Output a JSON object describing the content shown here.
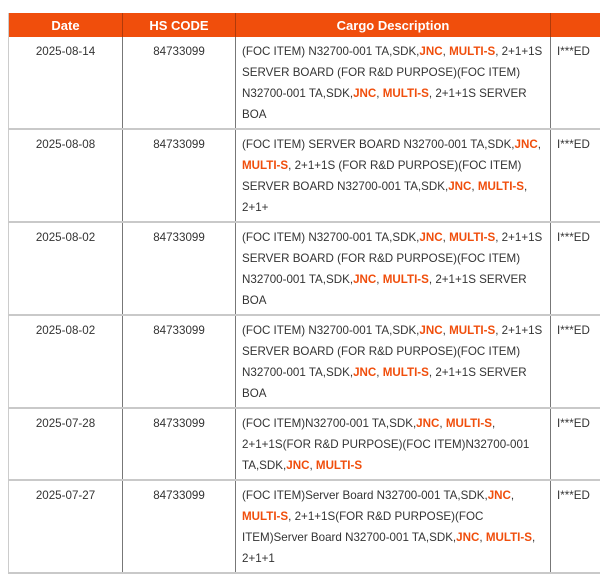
{
  "accent_color": "#f04e0c",
  "headers": [
    "Date",
    "HS CODE",
    "Cargo Description",
    ""
  ],
  "rows": [
    {
      "date": "2025-08-14",
      "hs": "84733099",
      "importer": "I***ED",
      "desc": [
        {
          "t": "(FOC ITEM) N32700-001 TA,SDK,"
        },
        {
          "t": "JNC",
          "hl": true
        },
        {
          "t": ", "
        },
        {
          "t": "MULTI-S",
          "hl": true
        },
        {
          "t": ", 2+1+1S SERVER BOARD (FOR R&D PURPOSE)(FOC ITEM) N32700-001 TA,SDK,"
        },
        {
          "t": "JNC",
          "hl": true
        },
        {
          "t": ", "
        },
        {
          "t": "MULTI-S",
          "hl": true
        },
        {
          "t": ", 2+1+1S SERVER BOA"
        }
      ]
    },
    {
      "date": "2025-08-08",
      "hs": "84733099",
      "importer": "I***ED",
      "desc": [
        {
          "t": "(FOC ITEM) SERVER BOARD N32700-001 TA,SDK,"
        },
        {
          "t": "JNC",
          "hl": true
        },
        {
          "t": ", "
        },
        {
          "t": "MULTI-S",
          "hl": true
        },
        {
          "t": ", 2+1+1S (FOR R&D PURPOSE)(FOC ITEM) SERVER BOARD N32700-001 TA,SDK,"
        },
        {
          "t": "JNC",
          "hl": true
        },
        {
          "t": ", "
        },
        {
          "t": "MULTI-S",
          "hl": true
        },
        {
          "t": ", 2+1+"
        }
      ]
    },
    {
      "date": "2025-08-02",
      "hs": "84733099",
      "importer": "I***ED",
      "desc": [
        {
          "t": "(FOC ITEM) N32700-001 TA,SDK,"
        },
        {
          "t": "JNC",
          "hl": true
        },
        {
          "t": ", "
        },
        {
          "t": "MULTI-S",
          "hl": true
        },
        {
          "t": ", 2+1+1S SERVER BOARD (FOR R&D PURPOSE)(FOC ITEM) N32700-001 TA,SDK,"
        },
        {
          "t": "JNC",
          "hl": true
        },
        {
          "t": ", "
        },
        {
          "t": "MULTI-S",
          "hl": true
        },
        {
          "t": ", 2+1+1S SERVER BOA"
        }
      ]
    },
    {
      "date": "2025-08-02",
      "hs": "84733099",
      "importer": "I***ED",
      "desc": [
        {
          "t": "(FOC ITEM) N32700-001 TA,SDK,"
        },
        {
          "t": "JNC",
          "hl": true
        },
        {
          "t": ", "
        },
        {
          "t": "MULTI-S",
          "hl": true
        },
        {
          "t": ", 2+1+1S SERVER BOARD (FOR R&D PURPOSE)(FOC ITEM) N32700-001 TA,SDK,"
        },
        {
          "t": "JNC",
          "hl": true
        },
        {
          "t": ", "
        },
        {
          "t": "MULTI-S",
          "hl": true
        },
        {
          "t": ", 2+1+1S SERVER BOA"
        }
      ]
    },
    {
      "date": "2025-07-28",
      "hs": "84733099",
      "importer": "I***ED",
      "desc": [
        {
          "t": "(FOC ITEM)N32700-001 TA,SDK,"
        },
        {
          "t": "JNC",
          "hl": true
        },
        {
          "t": ", "
        },
        {
          "t": "MULTI-S",
          "hl": true
        },
        {
          "t": ", 2+1+1S(FOR R&D PURPOSE)(FOC ITEM)N32700-001 TA,SDK,"
        },
        {
          "t": "JNC",
          "hl": true
        },
        {
          "t": ", "
        },
        {
          "t": "MULTI-S",
          "hl": true
        }
      ]
    },
    {
      "date": "2025-07-27",
      "hs": "84733099",
      "importer": "I***ED",
      "desc": [
        {
          "t": "(FOC ITEM)Server Board N32700-001 TA,SDK,"
        },
        {
          "t": "JNC",
          "hl": true
        },
        {
          "t": ", "
        },
        {
          "t": "MULTI-S",
          "hl": true
        },
        {
          "t": ", 2+1+1S(FOR R&D PURPOSE)(FOC ITEM)Server Board N32700-001 TA,SDK,"
        },
        {
          "t": "JNC",
          "hl": true
        },
        {
          "t": ", "
        },
        {
          "t": "MULTI-S",
          "hl": true
        },
        {
          "t": ", 2+1+1"
        }
      ]
    }
  ]
}
